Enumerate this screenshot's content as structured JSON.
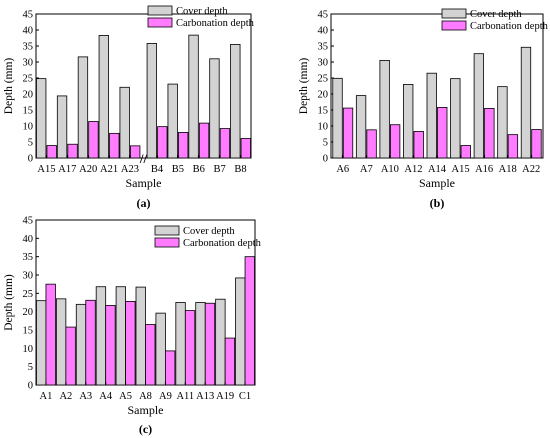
{
  "chart_data": [
    {
      "type": "bar",
      "panel_label": "(a)",
      "xlabel": "Sample",
      "ylabel": "Depth (mm)",
      "ylim": [
        0,
        45
      ],
      "yticks": [
        0,
        5,
        10,
        15,
        20,
        25,
        30,
        35,
        40,
        45
      ],
      "grid": false,
      "legend_position": "top-right",
      "axis_break": "//",
      "break_after_index": 4,
      "categories": [
        "A15",
        "A17",
        "A20",
        "A21",
        "A23",
        "B4",
        "B5",
        "B6",
        "B7",
        "B8"
      ],
      "series": [
        {
          "name": "Cover depth",
          "color": "#d3d3d3",
          "values": [
            24.8,
            19.4,
            31.6,
            38.3,
            22.1,
            35.8,
            23.1,
            38.4,
            31.0,
            35.5
          ]
        },
        {
          "name": "Carbonation depth",
          "color": "#ff7bff",
          "values": [
            3.9,
            4.3,
            11.4,
            7.7,
            3.8,
            9.8,
            8.0,
            10.9,
            9.2,
            6.1
          ]
        }
      ]
    },
    {
      "type": "bar",
      "panel_label": "(b)",
      "xlabel": "Sample",
      "ylabel": "Depth (mm)",
      "ylim": [
        0,
        45
      ],
      "yticks": [
        0,
        5,
        10,
        15,
        20,
        25,
        30,
        35,
        40,
        45
      ],
      "grid": false,
      "legend_position": "top-right",
      "categories": [
        "A6",
        "A7",
        "A10",
        "A12",
        "A14",
        "A15",
        "A16",
        "A18",
        "A22"
      ],
      "series": [
        {
          "name": "Cover depth",
          "color": "#d3d3d3",
          "values": [
            24.9,
            19.5,
            30.5,
            23.0,
            26.5,
            24.8,
            32.6,
            22.3,
            34.6
          ]
        },
        {
          "name": "Carbonation depth",
          "color": "#ff7bff",
          "values": [
            15.6,
            8.8,
            10.4,
            8.3,
            15.8,
            3.9,
            15.5,
            7.3,
            8.9
          ]
        }
      ]
    },
    {
      "type": "bar",
      "panel_label": "(c)",
      "xlabel": "Sample",
      "ylabel": "Depth (mm)",
      "ylim": [
        0,
        45
      ],
      "yticks": [
        0,
        5,
        10,
        15,
        20,
        25,
        30,
        35,
        40,
        45
      ],
      "grid": false,
      "legend_position": "top-right",
      "categories": [
        "A1",
        "A2",
        "A3",
        "A4",
        "A5",
        "A8",
        "A9",
        "A11",
        "A13",
        "A19",
        "C1"
      ],
      "series": [
        {
          "name": "Cover depth",
          "color": "#d3d3d3",
          "values": [
            23.0,
            23.5,
            22.0,
            26.8,
            26.8,
            26.7,
            19.6,
            22.5,
            22.5,
            23.4,
            29.2
          ]
        },
        {
          "name": "Carbonation depth",
          "color": "#ff7bff",
          "values": [
            27.5,
            15.8,
            23.1,
            21.7,
            22.8,
            16.5,
            9.3,
            20.3,
            22.3,
            12.8,
            35.0
          ]
        }
      ]
    }
  ]
}
